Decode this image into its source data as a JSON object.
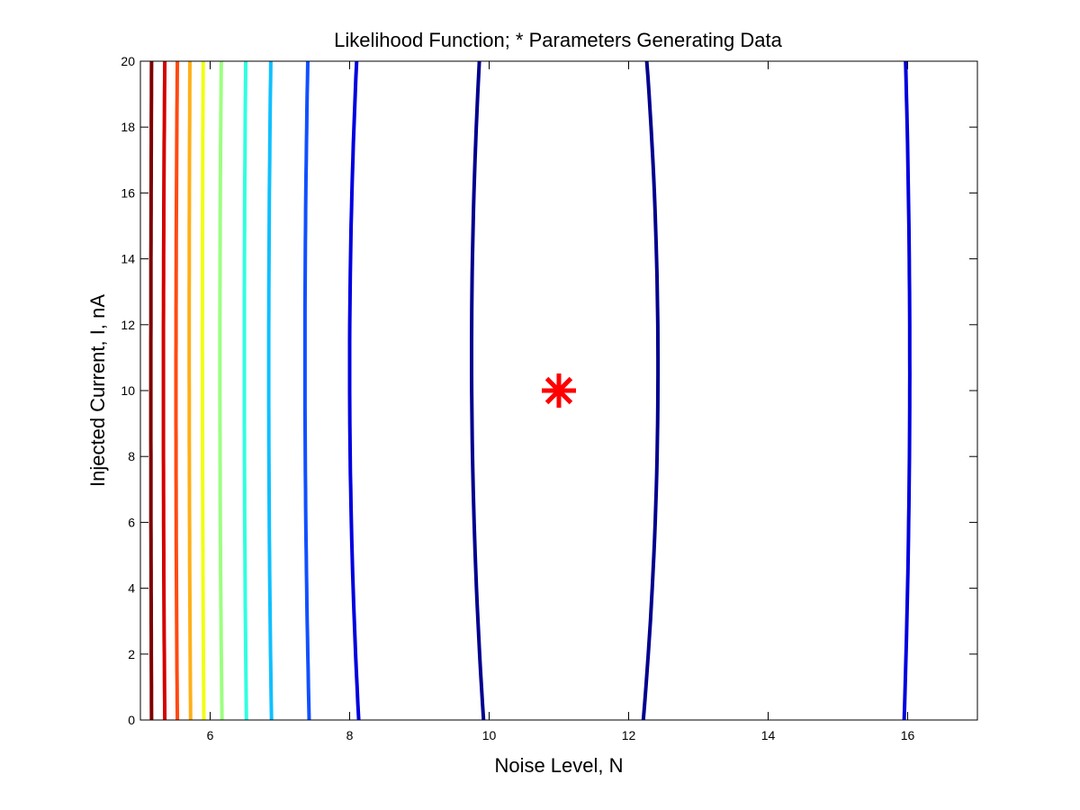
{
  "chart_data": {
    "type": "contour",
    "title": "Likelihood Function; * Parameters Generating Data",
    "xlabel": "Noise Level, N",
    "ylabel": "Injected Current, I, nA",
    "xlim": [
      5,
      17
    ],
    "ylim": [
      0,
      20
    ],
    "xticks": [
      6,
      8,
      10,
      12,
      14,
      16
    ],
    "yticks": [
      0,
      2,
      4,
      6,
      8,
      10,
      12,
      14,
      16,
      18,
      20
    ],
    "grid": false,
    "colormap": "jet",
    "contours": [
      {
        "color": "#7f0000",
        "points": [
          [
            5.16,
            0
          ],
          [
            5.15,
            10
          ],
          [
            5.16,
            20
          ]
        ]
      },
      {
        "color": "#d40000",
        "points": [
          [
            5.35,
            0
          ],
          [
            5.33,
            10
          ],
          [
            5.35,
            20
          ]
        ]
      },
      {
        "color": "#ff4a10",
        "points": [
          [
            5.53,
            0
          ],
          [
            5.51,
            10
          ],
          [
            5.53,
            20
          ]
        ]
      },
      {
        "color": "#ffb018",
        "points": [
          [
            5.72,
            0
          ],
          [
            5.7,
            10
          ],
          [
            5.71,
            20
          ]
        ]
      },
      {
        "color": "#f0ff10",
        "points": [
          [
            5.91,
            0
          ],
          [
            5.89,
            10
          ],
          [
            5.9,
            20
          ]
        ]
      },
      {
        "color": "#9cff80",
        "points": [
          [
            6.17,
            0
          ],
          [
            6.14,
            10
          ],
          [
            6.16,
            20
          ]
        ]
      },
      {
        "color": "#30ffe0",
        "points": [
          [
            6.52,
            0
          ],
          [
            6.49,
            10
          ],
          [
            6.51,
            20
          ]
        ]
      },
      {
        "color": "#10c0ff",
        "points": [
          [
            6.88,
            0
          ],
          [
            6.84,
            10
          ],
          [
            6.87,
            20
          ]
        ]
      },
      {
        "color": "#1050ff",
        "points": [
          [
            7.42,
            0
          ],
          [
            7.36,
            10
          ],
          [
            7.4,
            20
          ]
        ]
      },
      {
        "color": "#0000e0",
        "points": [
          [
            8.13,
            0
          ],
          [
            8.0,
            10
          ],
          [
            8.1,
            20
          ]
        ]
      },
      {
        "color": "#00008f",
        "points": [
          [
            9.92,
            0
          ],
          [
            9.75,
            10
          ],
          [
            9.86,
            20
          ]
        ]
      },
      {
        "color": "#00008f",
        "points": [
          [
            12.21,
            0
          ],
          [
            12.42,
            10
          ],
          [
            12.26,
            20
          ]
        ]
      },
      {
        "color": "#0000e0",
        "points": [
          [
            15.95,
            0
          ],
          [
            16.03,
            10
          ],
          [
            15.97,
            20
          ]
        ]
      }
    ],
    "markers": [
      {
        "symbol": "*",
        "color": "#ff0000",
        "x": 11,
        "y": 10
      }
    ]
  }
}
